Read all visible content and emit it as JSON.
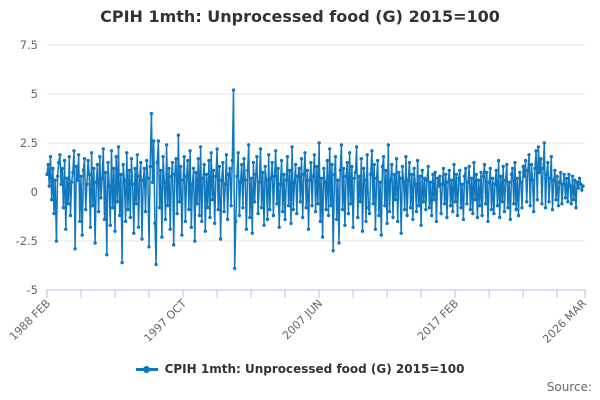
{
  "title": "CPIH 1mth: Unprocessed food (G) 2015=100",
  "legend": {
    "label": "CPIH 1mth: Unprocessed food (G) 2015=100"
  },
  "source_label": "Source:",
  "colors": {
    "series": "#1178be",
    "grid": "#e6e6e6",
    "axis": "#ccd6eb",
    "axis_label": "#666666",
    "title_text": "#333333"
  },
  "chart_data": {
    "type": "line",
    "title": "CPIH 1mth: Unprocessed food (G) 2015=100",
    "xlabel": "",
    "ylabel": "",
    "x_start": "1988 FEB",
    "x_end": "2026 MAR",
    "x_months_total": 458,
    "x_tick_labels": [
      "1988 FEB",
      "1997 OCT",
      "2007 JUN",
      "2017 FEB",
      "2026 MAR"
    ],
    "x_tick_label_months": [
      0,
      116,
      232,
      348,
      457
    ],
    "x_minor_tick_interval_months": 29,
    "y_ticks": [
      7.5,
      5,
      2.5,
      0,
      -2.5,
      -5
    ],
    "ylim": [
      -5,
      7.5
    ],
    "grid": true,
    "legend_position": "bottom-center",
    "series_name": "CPIH 1mth: Unprocessed food (G) 2015=100",
    "values": [
      0.9,
      1.4,
      0.3,
      1.8,
      -0.4,
      1.2,
      -1.1,
      0.6,
      -2.5,
      0.8,
      1.5,
      1.9,
      0.4,
      1.2,
      -0.8,
      1.6,
      -1.9,
      0.7,
      -0.6,
      1.8,
      -1.2,
      0.5,
      1.0,
      2.1,
      -2.9,
      1.3,
      0.6,
      1.9,
      -1.5,
      0.8,
      -2.2,
      1.1,
      1.7,
      -0.9,
      0.4,
      1.6,
      0.9,
      -1.8,
      2.0,
      -0.7,
      1.2,
      -2.6,
      0.5,
      1.4,
      -1.0,
      1.8,
      -0.3,
      0.7,
      2.2,
      -1.4,
      1.0,
      -3.2,
      1.5,
      0.3,
      -1.7,
      2.1,
      -0.8,
      1.2,
      -2.0,
      1.8,
      -0.5,
      2.3,
      -1.2,
      0.9,
      -3.6,
      1.4,
      0.6,
      -1.5,
      2.0,
      -0.9,
      1.1,
      -1.3,
      1.7,
      0.4,
      -2.1,
      1.2,
      -0.6,
      1.9,
      -1.8,
      0.8,
      1.5,
      -2.4,
      0.6,
      1.2,
      -1.0,
      1.6,
      0.7,
      -2.8,
      1.3,
      4.0,
      0.5,
      2.6,
      -1.6,
      -3.7,
      1.5,
      2.6,
      -0.8,
      1.1,
      -2.3,
      1.8,
      0.5,
      -1.4,
      2.4,
      -0.7,
      1.2,
      -1.9,
      0.8,
      1.5,
      -2.7,
      0.9,
      1.7,
      -1.1,
      2.9,
      -0.5,
      1.3,
      -2.2,
      0.6,
      1.8,
      -1.5,
      0.8,
      1.6,
      -0.9,
      2.1,
      -1.8,
      0.4,
      1.2,
      -2.5,
      1.0,
      -0.6,
      1.7,
      -1.2,
      2.3,
      -1.5,
      0.7,
      1.4,
      -2.0,
      0.9,
      -0.8,
      1.6,
      -1.3,
      2.0,
      -0.4,
      1.1,
      -1.6,
      0.8,
      2.2,
      -0.9,
      1.3,
      -2.4,
      0.6,
      1.5,
      -1.0,
      0.4,
      1.9,
      -1.4,
      0.9,
      1.2,
      -0.7,
      1.6,
      5.2,
      -3.9,
      -1.5,
      0.8,
      2.0,
      -1.2,
      0.5,
      1.4,
      -0.8,
      1.7,
      0.6,
      -1.9,
      1.1,
      2.4,
      -1.3,
      0.7,
      -2.1,
      1.5,
      -0.5,
      0.9,
      1.8,
      -1.1,
      0.5,
      2.2,
      -0.8,
      1.0,
      -1.7,
      1.3,
      0.6,
      -1.4,
      1.9,
      -0.9,
      0.7,
      1.5,
      -1.2,
      0.8,
      2.1,
      -0.6,
      1.2,
      -1.8,
      0.4,
      1.6,
      -1.0,
      0.9,
      -1.4,
      0.6,
      1.8,
      -0.7,
      1.1,
      -1.6,
      2.3,
      -0.9,
      0.5,
      1.4,
      -1.1,
      0.8,
      1.2,
      -0.5,
      1.7,
      -1.3,
      0.9,
      2.0,
      -0.8,
      1.1,
      -1.9,
      0.6,
      1.5,
      -0.7,
      0.8,
      1.9,
      -1.0,
      1.3,
      -0.6,
      2.5,
      -1.5,
      0.7,
      -2.3,
      1.2,
      0.5,
      -0.9,
      1.6,
      -1.2,
      2.2,
      -0.7,
      1.4,
      -3.0,
      0.9,
      1.8,
      -1.4,
      0.6,
      -2.6,
      1.1,
      2.4,
      -0.9,
      1.2,
      -1.7,
      0.8,
      1.5,
      -1.1,
      2.0,
      -0.6,
      1.3,
      -1.8,
      0.7,
      1.0,
      2.3,
      -1.3,
      0.8,
      -0.5,
      1.7,
      -2.0,
      1.2,
      0.6,
      -1.5,
      1.9,
      -0.8,
      -1.1,
      0.9,
      2.1,
      -0.6,
      1.4,
      -1.9,
      0.7,
      1.6,
      -1.2,
      0.5,
      -2.2,
      1.3,
      1.8,
      -0.7,
      1.1,
      -1.6,
      2.4,
      -1.0,
      0.6,
      1.4,
      -1.3,
      0.9,
      -0.4,
      1.7,
      -1.5,
      1.0,
      0.7,
      -2.1,
      1.3,
      0.5,
      -0.9,
      1.8,
      -1.2,
      0.6,
      1.5,
      -0.8,
      0.9,
      -1.4,
      1.2,
      0.4,
      -1.0,
      1.6,
      -0.7,
      0.8,
      -1.7,
      1.1,
      -0.5,
      0.7,
      -0.9,
      0.6,
      1.3,
      -0.8,
      0.5,
      -1.2,
      0.9,
      -0.4,
      1.0,
      -1.5,
      0.7,
      0.3,
      0.8,
      -1.1,
      0.4,
      1.2,
      -0.6,
      0.9,
      -1.3,
      0.5,
      1.1,
      -0.7,
      0.6,
      -1.0,
      1.4,
      -0.5,
      0.9,
      -1.2,
      0.7,
      1.1,
      -0.8,
      0.4,
      -1.4,
      0.8,
      1.2,
      -0.6,
      0.5,
      1.3,
      -0.9,
      0.7,
      -1.1,
      1.5,
      -0.4,
      0.9,
      -1.3,
      0.6,
      -0.7,
      1.0,
      -1.2,
      0.8,
      1.4,
      -0.6,
      1.0,
      -1.5,
      0.5,
      1.2,
      -0.9,
      0.7,
      -1.1,
      0.4,
      1.1,
      -0.7,
      1.6,
      -1.3,
      0.8,
      -0.5,
      1.3,
      -1.0,
      0.6,
      1.4,
      -0.8,
      0.5,
      -1.4,
      0.9,
      1.2,
      -0.6,
      1.5,
      -0.9,
      0.7,
      -1.2,
      1.0,
      0.5,
      -0.8,
      1.3,
      0.8,
      1.6,
      -0.5,
      1.1,
      1.9,
      -0.7,
      1.4,
      0.6,
      -1.0,
      1.2,
      2.1,
      -0.4,
      2.3,
      1.0,
      1.7,
      -0.6,
      1.2,
      2.5,
      -0.8,
      0.9,
      1.5,
      -0.5,
      0.7,
      1.8,
      -0.9,
      0.6,
      1.1,
      -0.4,
      0.8,
      -0.7,
      0.5,
      1.0,
      -0.6,
      0.4,
      0.9,
      -0.3,
      0.7,
      -0.5,
      0.9,
      0.3,
      -0.6,
      0.8,
      -0.4,
      0.6,
      -0.8,
      0.5,
      0.2,
      0.7,
      0.4,
      0.1,
      0.3
    ]
  }
}
